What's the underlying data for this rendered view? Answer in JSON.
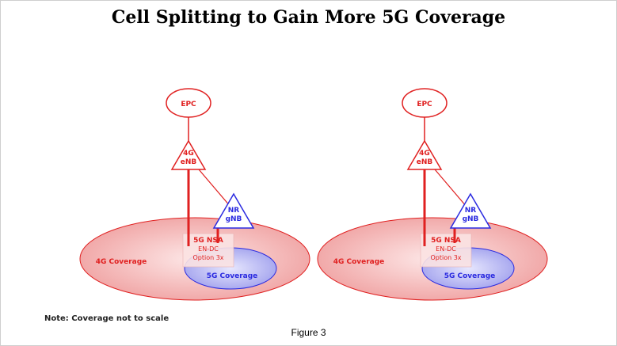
{
  "title": "Cell Splitting to Gain More 5G Coverage",
  "note": "Note: Coverage not to scale",
  "caption": "Figure 3",
  "colors": {
    "red": "#e02020",
    "blue": "#2a2ae0",
    "coverage_4g_fill": "#f4b6b6",
    "coverage_5g_fill": "#b9b9f2"
  },
  "nodes": {
    "epc": "EPC",
    "enb_line1": "4G",
    "enb_line2": "eNB",
    "gnb_line1": "NR",
    "gnb_line2": "gNB"
  },
  "nsa": {
    "line1": "5G NSA",
    "line2": "EN-DC",
    "line3": "Option 3x"
  },
  "coverage": {
    "c4g": "4G Coverage",
    "c5g": "5G Coverage"
  }
}
